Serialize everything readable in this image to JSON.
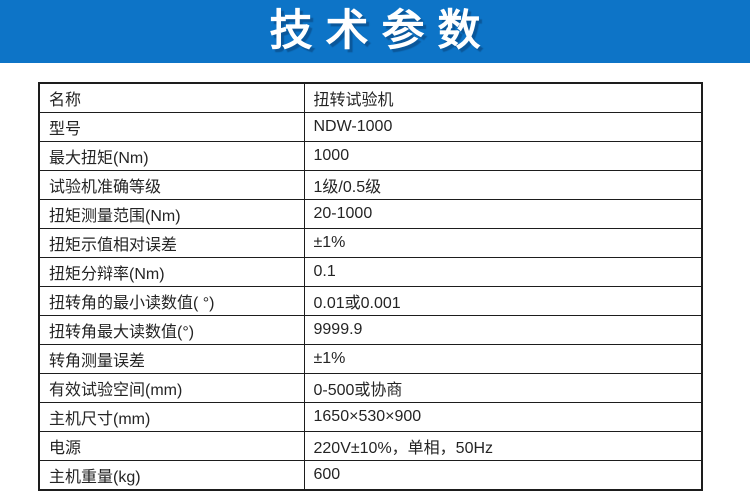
{
  "header": {
    "title": "技术参数",
    "banner_color": "#0d74c7",
    "title_color": "#ffffff"
  },
  "table": {
    "rows": [
      {
        "label": "名称",
        "value": "扭转试验机"
      },
      {
        "label": "型号",
        "value": "NDW-1000"
      },
      {
        "label": "最大扭矩(Nm)",
        "value": "1000"
      },
      {
        "label": "试验机准确等级",
        "value": "1级/0.5级"
      },
      {
        "label": "扭矩测量范围(Nm)",
        "value": "20-1000"
      },
      {
        "label": "扭矩示值相对误差",
        "value": "±1%"
      },
      {
        "label": "扭矩分辩率(Nm)",
        "value": "0.1"
      },
      {
        "label": "扭转角的最小读数值( °)",
        "value": "0.01或0.001"
      },
      {
        "label": "扭转角最大读数值(°)",
        "value": "9999.9"
      },
      {
        "label": "转角测量误差",
        "value": "±1%"
      },
      {
        "label": "有效试验空间(mm)",
        "value": "0-500或协商"
      },
      {
        "label": "主机尺寸(mm)",
        "value": "1650×530×900"
      },
      {
        "label": "电源",
        "value": "220V±10%，单相，50Hz"
      },
      {
        "label": "主机重量(kg)",
        "value": "600"
      }
    ]
  }
}
